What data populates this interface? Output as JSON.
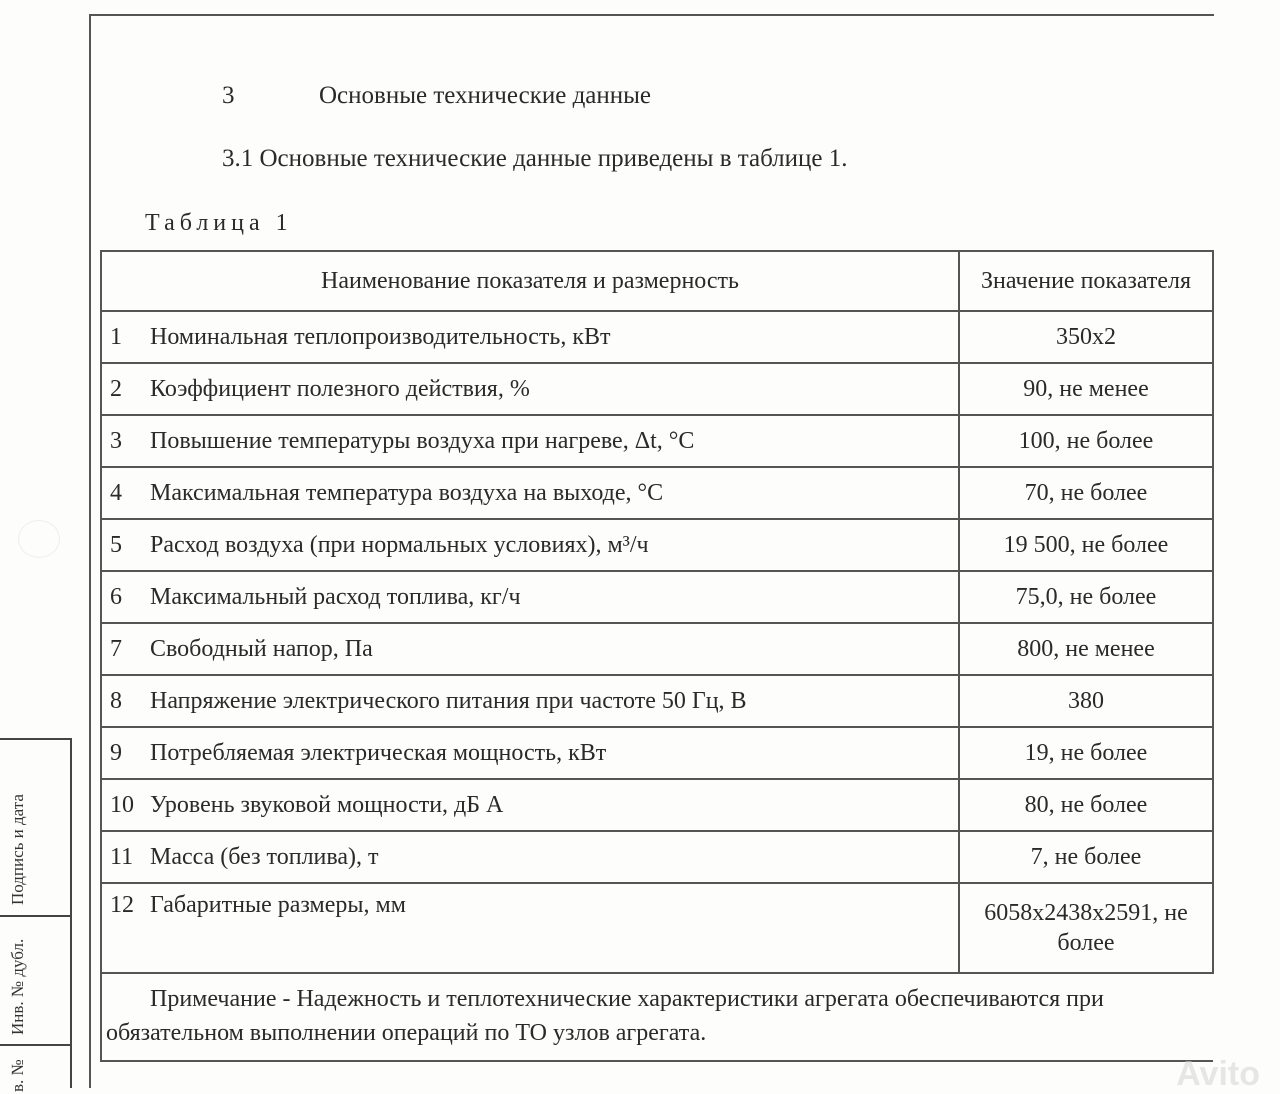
{
  "section": {
    "number": "3",
    "title": "Основные технические данные"
  },
  "paragraph": "3.1 Основные технические данные приведены в таблице 1.",
  "table_caption": "Таблица 1",
  "table": {
    "headers": [
      "Наименование показателя и размерность",
      "Значение показателя"
    ],
    "rows": [
      {
        "n": "1",
        "name": "Номинальная теплопроизводительность, кВт",
        "value": "350х2"
      },
      {
        "n": "2",
        "name": "Коэффициент полезного действия, %",
        "value": "90, не менее"
      },
      {
        "n": "3",
        "name": "Повышение температуры воздуха при нагреве, Δt, °С",
        "value": "100, не более"
      },
      {
        "n": "4",
        "name": "Максимальная температура воздуха на выходе, °С",
        "value": "70, не более"
      },
      {
        "n": "5",
        "name": "Расход воздуха (при нормальных условиях), м³/ч",
        "value": "19 500, не более"
      },
      {
        "n": "6",
        "name": "Максимальный расход топлива, кг/ч",
        "value": "75,0, не более"
      },
      {
        "n": "7",
        "name": "Свободный напор, Па",
        "value": "800, не менее"
      },
      {
        "n": "8",
        "name": "Напряжение электрического питания при частоте 50 Гц, В",
        "value": "380"
      },
      {
        "n": "9",
        "name": "Потребляемая электрическая мощность, кВт",
        "value": "19, не более"
      },
      {
        "n": "10",
        "name": "Уровень звуковой мощности, дБ А",
        "value": "80, не более"
      },
      {
        "n": "11",
        "name": "Масса (без топлива), т",
        "value": "7, не более"
      },
      {
        "n": "12",
        "name": "Габаритные размеры, мм",
        "value": "6058х2438х2591, не более"
      }
    ],
    "note": "Примечание - Надежность и теплотехнические характеристики агрегата обеспечиваются при обязательном выполнении операций по ТО узлов агрегата."
  },
  "stamp": {
    "signature_date": "Подпись и дата",
    "inv_dubl": "Инв. № дубл.",
    "inv_partial": "в. №"
  },
  "watermark": "Avito"
}
